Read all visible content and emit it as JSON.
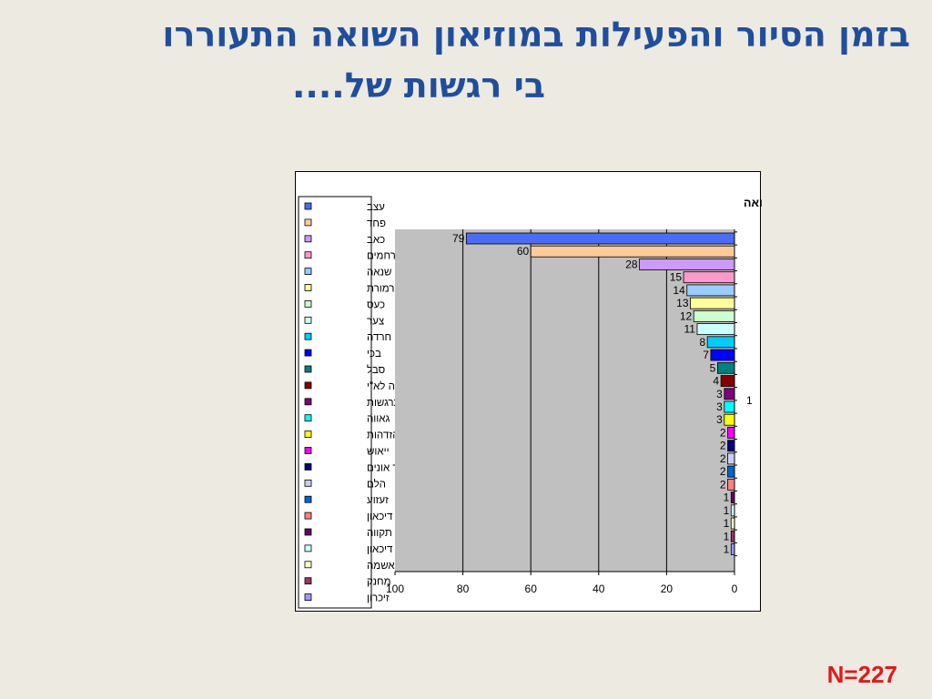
{
  "slide": {
    "title_line1": "בזמן הסיור והפעילות במוזיאון השואה התעוררו",
    "title_line2": "בי רגשות של....",
    "sample_size": "N=227"
  },
  "colors": {
    "title": "#1f4e9c",
    "sample_size": "#e01a1a",
    "plot_background": "#c0c0c0"
  },
  "chart_data": {
    "type": "bar",
    "orientation": "horizontal",
    "title": "רגשות שעלו בי בזמן הסיור והפעלות במוזיאון השואה",
    "categories": [
      "עצב",
      "פחד",
      "כאב",
      "רחמים",
      "שנאה",
      "צמרמורת",
      "כעס",
      "צער",
      "חרדה",
      "בכי",
      "סבל",
      "אהבה לא\"י",
      "התרגשות",
      "גאווה",
      "הזדהות",
      "ייאוש",
      "חוסר אונים",
      "הלם",
      "זעזוע",
      "דיכאון",
      "תקווה",
      "דיכאון",
      "אשמה",
      "מחנק",
      "זיכרון"
    ],
    "values": [
      79,
      60,
      28,
      15,
      14,
      13,
      12,
      11,
      8,
      7,
      5,
      4,
      3,
      3,
      3,
      2,
      2,
      2,
      2,
      2,
      1,
      1,
      1,
      1,
      1
    ],
    "colors": [
      "#4a6cf7",
      "#ffcc99",
      "#cc99ff",
      "#ff99cc",
      "#99ccff",
      "#ffff99",
      "#ccffcc",
      "#ccffff",
      "#00ccff",
      "#0000ff",
      "#008080",
      "#800000",
      "#800080",
      "#00ffff",
      "#ffff00",
      "#ff00ff",
      "#000080",
      "#ccccff",
      "#0066cc",
      "#ff8080",
      "#660066",
      "#ccffff",
      "#ffffcc",
      "#993366",
      "#9999ff"
    ],
    "extra_label": "1",
    "x_ticks": [
      100,
      80,
      60,
      40,
      20,
      0
    ],
    "xlim": [
      0,
      100
    ],
    "x_reversed": true,
    "grid": "vertical",
    "legend_position": "left"
  }
}
